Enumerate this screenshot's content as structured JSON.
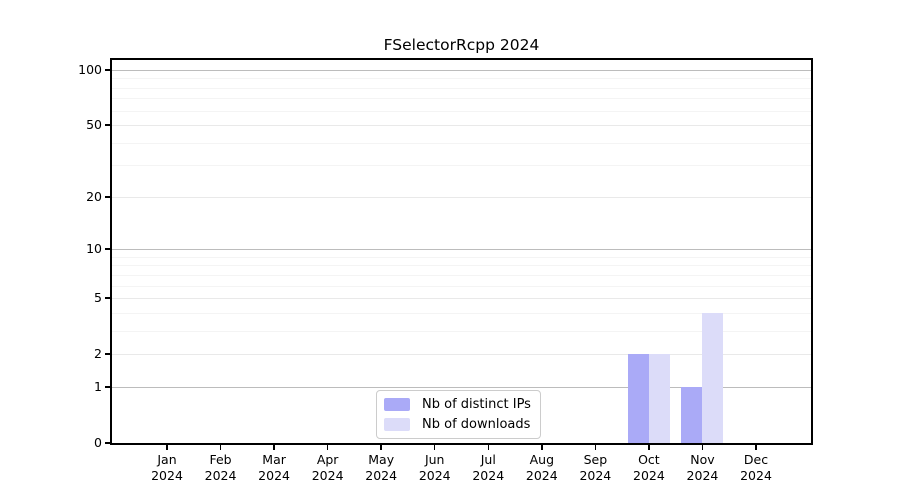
{
  "chart_data": {
    "type": "bar",
    "title": "FSelectorRcpp 2024",
    "categories": [
      "Jan 2024",
      "Feb 2024",
      "Mar 2024",
      "Apr 2024",
      "May 2024",
      "Jun 2024",
      "Jul 2024",
      "Aug 2024",
      "Sep 2024",
      "Oct 2024",
      "Nov 2024",
      "Dec 2024"
    ],
    "series": [
      {
        "name": "Nb of distinct IPs",
        "color": "#aaaaf7",
        "values": [
          0,
          0,
          0,
          0,
          0,
          0,
          0,
          0,
          0,
          2,
          1,
          0
        ]
      },
      {
        "name": "Nb of downloads",
        "color": "#dcdcf9",
        "values": [
          0,
          0,
          0,
          0,
          0,
          0,
          0,
          0,
          0,
          2,
          4,
          0
        ]
      }
    ],
    "xlabel": "",
    "ylabel": "",
    "y_scale": "log1p",
    "ylim": [
      0,
      113
    ],
    "y_ticks": [
      0,
      1,
      2,
      5,
      10,
      20,
      50,
      100
    ],
    "y_minor_gridlines": [
      3,
      4,
      6,
      7,
      8,
      9,
      30,
      40,
      60,
      70,
      80,
      90
    ],
    "grid": true,
    "legend_position": "lower center",
    "colors": {
      "decade_gridline": "#bcbcbc",
      "major_gridline": "#e9e9e9",
      "minor_gridline": "#f4f4f4",
      "axis": "#000000",
      "background": "#ffffff"
    }
  }
}
